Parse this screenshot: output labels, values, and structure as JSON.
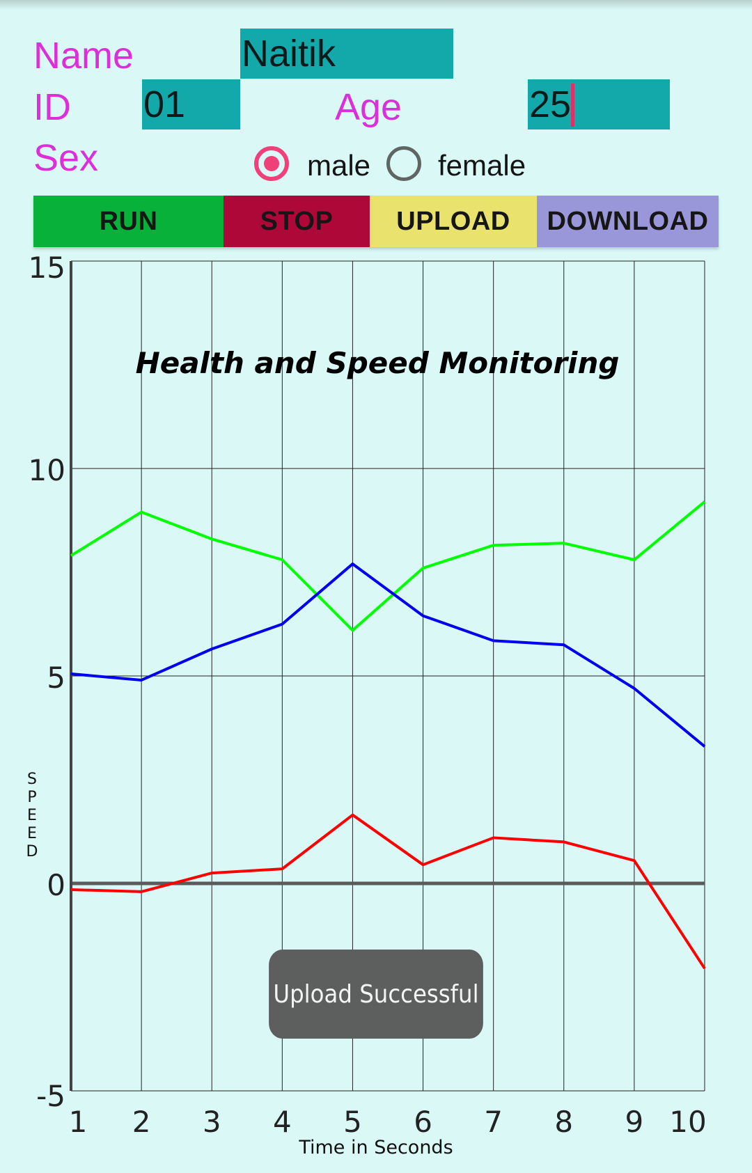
{
  "form": {
    "name_label": "Name",
    "name_value": "Naitik",
    "id_label": "ID",
    "id_value": "01",
    "age_label": "Age",
    "age_value": "25",
    "sex_label": "Sex",
    "sex_options": [
      {
        "label": "male",
        "selected": true
      },
      {
        "label": "female",
        "selected": false
      }
    ]
  },
  "buttons": [
    {
      "label": "RUN",
      "color": "#08b23a"
    },
    {
      "label": "STOP",
      "color": "#ad0838"
    },
    {
      "label": "UPLOAD",
      "color": "#e9e36e"
    },
    {
      "label": "DOWNLOAD",
      "color": "#9a96da"
    }
  ],
  "toast": {
    "text": "Upload Successful"
  },
  "chart_data": {
    "type": "line",
    "title": "Health and Speed Monitoring",
    "xlabel": "Time in Seconds",
    "ylabel": "SPEED",
    "x": [
      1,
      2,
      3,
      4,
      5,
      6,
      7,
      8,
      9,
      10
    ],
    "ylim": [
      -5,
      15
    ],
    "yticks": [
      -5,
      0,
      5,
      10,
      15
    ],
    "grid": true,
    "series": [
      {
        "color": "#00ff00",
        "values": [
          7.9,
          8.95,
          8.3,
          7.8,
          6.1,
          7.6,
          8.15,
          8.2,
          7.8,
          9.2
        ]
      },
      {
        "color": "#0000ee",
        "values": [
          5.05,
          4.9,
          5.65,
          6.25,
          7.7,
          6.45,
          5.85,
          5.75,
          4.7,
          3.3
        ]
      },
      {
        "color": "#ff0000",
        "values": [
          -0.15,
          -0.2,
          0.25,
          0.35,
          1.65,
          0.45,
          1.1,
          1.0,
          0.55,
          -2.05
        ]
      }
    ]
  }
}
